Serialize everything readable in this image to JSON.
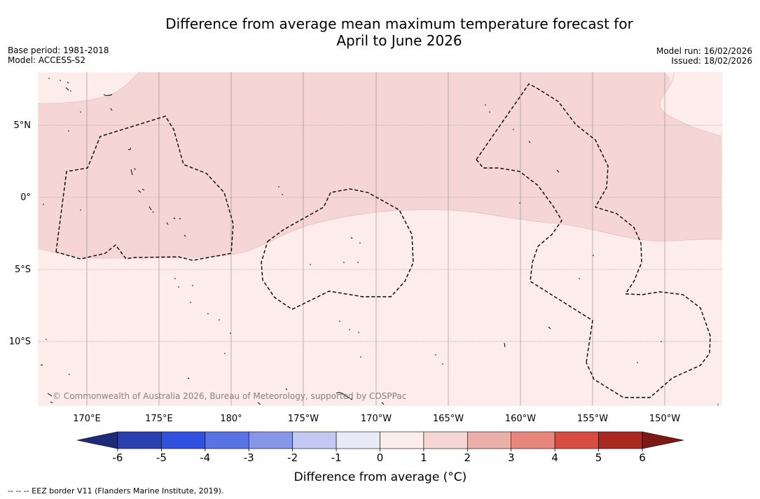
{
  "header": {
    "title_line1": "Difference from average mean maximum temperature forecast for",
    "title_line2": "April to June 2026",
    "base_period": "Base period: 1981-2018",
    "model": "Model: ACCESS-S2",
    "model_run": "Model run: 16/02/2026",
    "issued": "Issued: 18/02/2026"
  },
  "map": {
    "lat_labels": [
      "5°N",
      "0°",
      "5°S",
      "10°S"
    ],
    "lon_labels": [
      "170°E",
      "175°E",
      "180°",
      "175°W",
      "170°W",
      "165°W",
      "160°W",
      "155°W",
      "150°W"
    ],
    "copyright": "© Commonwealth of Australia 2026, Bureau of Meteorology, supported by COSPPac",
    "colors": {
      "anomaly_1_to_2": "#f5d6d4",
      "anomaly_0_to_1": "#fcecea",
      "gridline": "#888888",
      "eez_border": "#000000"
    }
  },
  "legend": {
    "tick_labels": [
      "-6",
      "-5",
      "-4",
      "-3",
      "-2",
      "-1",
      "0",
      "1",
      "2",
      "3",
      "4",
      "5",
      "6"
    ],
    "colors": [
      "#1c2a78",
      "#2a3fb0",
      "#2f50e0",
      "#5873e4",
      "#8697ea",
      "#c3c8f3",
      "#e8eaf8",
      "#fcecea",
      "#f5d6d4",
      "#ebafaa",
      "#e6867d",
      "#d84c42",
      "#a9281f",
      "#7b1a14"
    ],
    "label": "Difference from average (°C)"
  },
  "footer": {
    "eez_note": "--  --  -- EEZ border V11 (Flanders Marine Institute, 2019)."
  }
}
